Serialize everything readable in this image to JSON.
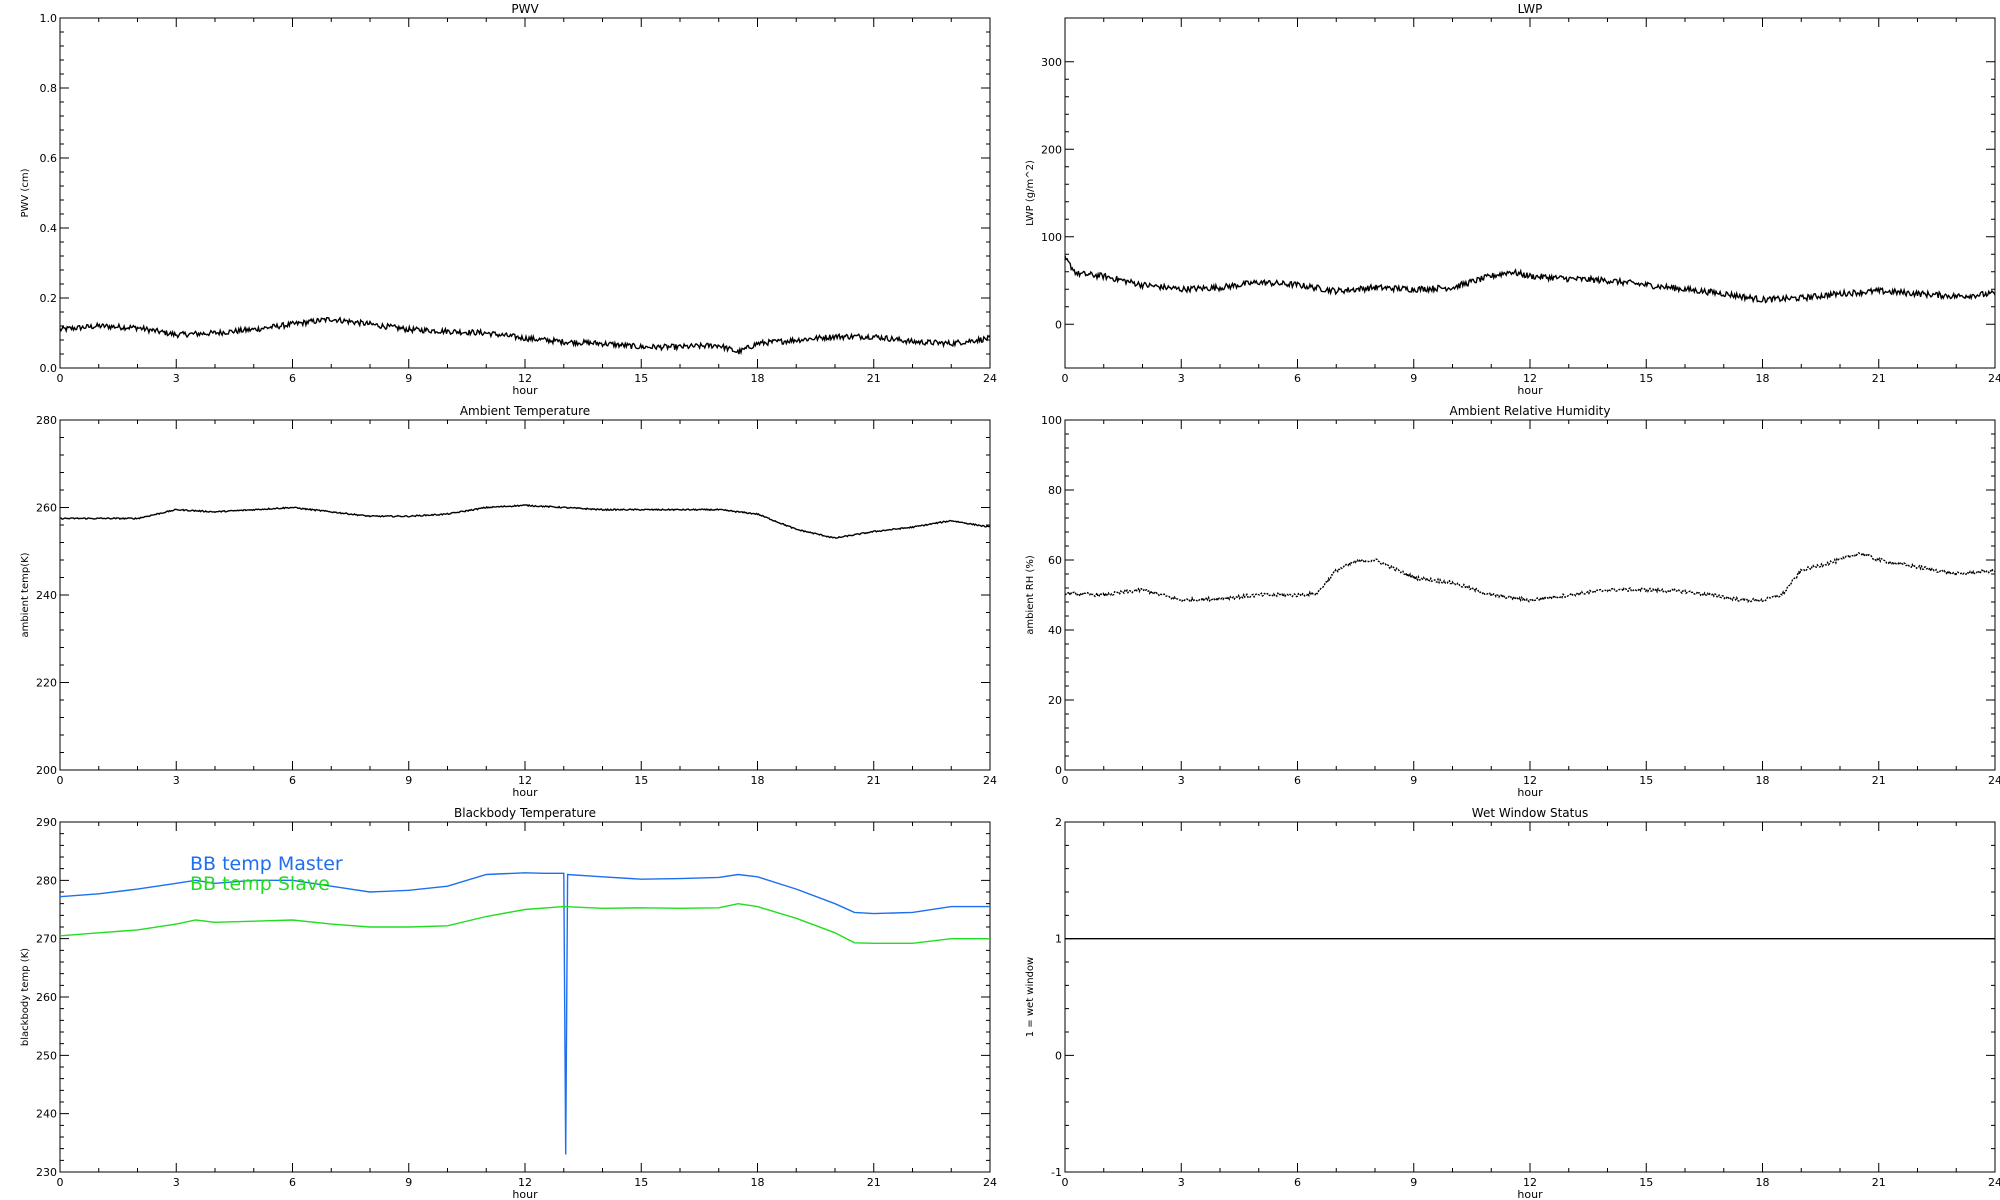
{
  "chart_data": [
    {
      "id": "pwv",
      "type": "line",
      "title": "PWV",
      "xlabel": "hour",
      "ylabel": "PWV (cm)",
      "xlim": [
        0,
        24
      ],
      "ylim": [
        0,
        1
      ],
      "xticks": [
        "0",
        "3",
        "6",
        "9",
        "12",
        "15",
        "18",
        "21",
        "24"
      ],
      "yticks": [
        "0.0",
        "0.2",
        "0.4",
        "0.6",
        "0.8",
        "1.0"
      ],
      "noise": 0.008,
      "series": [
        {
          "color": "#000000",
          "x": [
            0,
            1,
            2,
            3,
            4,
            5,
            6,
            7,
            8,
            9,
            10,
            11,
            12,
            13,
            14,
            15,
            16,
            17,
            17.5,
            18,
            19,
            20,
            21,
            22,
            23,
            24
          ],
          "y": [
            0.11,
            0.12,
            0.115,
            0.095,
            0.1,
            0.11,
            0.125,
            0.14,
            0.125,
            0.11,
            0.105,
            0.1,
            0.085,
            0.075,
            0.07,
            0.06,
            0.06,
            0.065,
            0.045,
            0.07,
            0.08,
            0.09,
            0.09,
            0.075,
            0.07,
            0.085
          ]
        }
      ]
    },
    {
      "id": "lwp",
      "type": "line",
      "title": "LWP",
      "xlabel": "hour",
      "ylabel": "LWP (g/m^2)",
      "xlim": [
        0,
        24
      ],
      "ylim": [
        -50,
        350
      ],
      "xticks": [
        "0",
        "3",
        "6",
        "9",
        "12",
        "15",
        "18",
        "21",
        "24"
      ],
      "yticks": [
        "0",
        "100",
        "200",
        "300"
      ],
      "noise": 3.5,
      "series": [
        {
          "color": "#000000",
          "x": [
            0,
            0.3,
            1,
            2,
            3,
            4,
            5,
            6,
            7,
            8,
            9,
            10,
            11,
            11.5,
            12,
            13,
            14,
            15,
            16,
            17,
            18,
            19,
            20,
            21,
            22,
            23,
            24
          ],
          "y": [
            75,
            58,
            55,
            45,
            40,
            42,
            48,
            45,
            38,
            42,
            40,
            42,
            55,
            60,
            55,
            52,
            50,
            45,
            40,
            35,
            28,
            30,
            35,
            38,
            35,
            32,
            35
          ]
        }
      ]
    },
    {
      "id": "ambient-temperature",
      "type": "line",
      "title": "Ambient Temperature",
      "xlabel": "hour",
      "ylabel": "ambient temp(K)",
      "xlim": [
        0,
        24
      ],
      "ylim": [
        200,
        280
      ],
      "xticks": [
        "0",
        "3",
        "6",
        "9",
        "12",
        "15",
        "18",
        "21",
        "24"
      ],
      "yticks": [
        "200",
        "220",
        "240",
        "260",
        "280"
      ],
      "noise": 0.15,
      "series": [
        {
          "color": "#000000",
          "x": [
            0,
            1,
            2,
            3,
            4,
            5,
            6,
            7,
            8,
            9,
            10,
            11,
            12,
            13,
            14,
            15,
            16,
            17,
            18,
            19,
            20,
            21,
            22,
            23,
            24
          ],
          "y": [
            257.5,
            257.5,
            257.5,
            259.5,
            259,
            259.5,
            260,
            259,
            258,
            258,
            258.5,
            260,
            260.5,
            260,
            259.5,
            259.5,
            259.5,
            259.5,
            258.5,
            255,
            253,
            254.5,
            255.5,
            257,
            255.5
          ]
        }
      ]
    },
    {
      "id": "ambient-relative-humidity",
      "type": "scatter",
      "title": "Ambient Relative Humidity",
      "xlabel": "hour",
      "ylabel": "ambient RH (%)",
      "xlim": [
        0,
        24
      ],
      "ylim": [
        0,
        100
      ],
      "xticks": [
        "0",
        "3",
        "6",
        "9",
        "12",
        "15",
        "18",
        "21",
        "24"
      ],
      "yticks": [
        "0",
        "20",
        "40",
        "60",
        "80",
        "100"
      ],
      "noise": 0.5,
      "series": [
        {
          "color": "#000000",
          "x": [
            0,
            1,
            2,
            3,
            4,
            5,
            6,
            6.5,
            7,
            7.5,
            8,
            9,
            10,
            11,
            12,
            13,
            14,
            15,
            16,
            17,
            17.5,
            18,
            18.5,
            19,
            20,
            20.5,
            21,
            22,
            23,
            24
          ],
          "y": [
            50.5,
            50,
            51.5,
            48.5,
            49,
            50,
            50,
            50.5,
            57,
            59.5,
            60,
            55,
            53.5,
            50,
            48.5,
            50,
            51.5,
            51.5,
            51,
            49.5,
            48.5,
            48.5,
            50,
            57,
            60,
            62,
            60,
            58,
            56,
            57
          ]
        }
      ]
    },
    {
      "id": "blackbody-temperature",
      "type": "line",
      "title": "Blackbody Temperature",
      "xlabel": "hour",
      "ylabel": "blackbody temp (K)",
      "xlim": [
        0,
        24
      ],
      "ylim": [
        230,
        290
      ],
      "xticks": [
        "0",
        "3",
        "6",
        "9",
        "12",
        "15",
        "18",
        "21",
        "24"
      ],
      "yticks": [
        "230",
        "240",
        "250",
        "260",
        "270",
        "280",
        "290"
      ],
      "noise": 0,
      "legend": [
        "BB temp Master",
        "BB temp Slave"
      ],
      "legend_placement": "top-left",
      "series": [
        {
          "name": "BB temp Master",
          "color": "#1e6ff0",
          "x": [
            0,
            1,
            2,
            3,
            3.5,
            4,
            5,
            6,
            7,
            8,
            9,
            10,
            11,
            12,
            12.5,
            13,
            13.05,
            13.1,
            14,
            15,
            16,
            17,
            17.5,
            18,
            19,
            20,
            20.5,
            21,
            22,
            23,
            24
          ],
          "y": [
            277.2,
            277.7,
            278.5,
            279.5,
            280,
            279.5,
            280,
            280,
            279,
            278,
            278.3,
            279,
            281,
            281.3,
            281.2,
            281.2,
            233,
            281,
            280.6,
            280.2,
            280.3,
            280.5,
            281,
            280.6,
            278.5,
            276,
            274.5,
            274.3,
            274.5,
            275.5,
            275.5
          ]
        },
        {
          "name": "BB temp Slave",
          "color": "#22dd22",
          "x": [
            0,
            1,
            2,
            3,
            3.5,
            4,
            5,
            6,
            7,
            8,
            9,
            10,
            11,
            12,
            13,
            14,
            15,
            16,
            17,
            17.5,
            18,
            19,
            20,
            20.5,
            21,
            22,
            23,
            24
          ],
          "y": [
            270.5,
            271,
            271.5,
            272.5,
            273.2,
            272.8,
            273,
            273.2,
            272.5,
            272,
            272,
            272.2,
            273.8,
            275,
            275.5,
            275.2,
            275.3,
            275.2,
            275.3,
            276,
            275.5,
            273.5,
            271,
            269.3,
            269.2,
            269.2,
            270,
            270
          ]
        }
      ]
    },
    {
      "id": "wet-window-status",
      "type": "line",
      "title": "Wet Window Status",
      "xlabel": "hour",
      "ylabel": "1 = wet window",
      "xlim": [
        0,
        24
      ],
      "ylim": [
        -1,
        2
      ],
      "xticks": [
        "0",
        "3",
        "6",
        "9",
        "12",
        "15",
        "18",
        "21",
        "24"
      ],
      "yticks": [
        "-1",
        "0",
        "1",
        "2"
      ],
      "noise": 0,
      "series": [
        {
          "color": "#000000",
          "x": [
            0,
            24
          ],
          "y": [
            1,
            1
          ]
        }
      ]
    }
  ]
}
